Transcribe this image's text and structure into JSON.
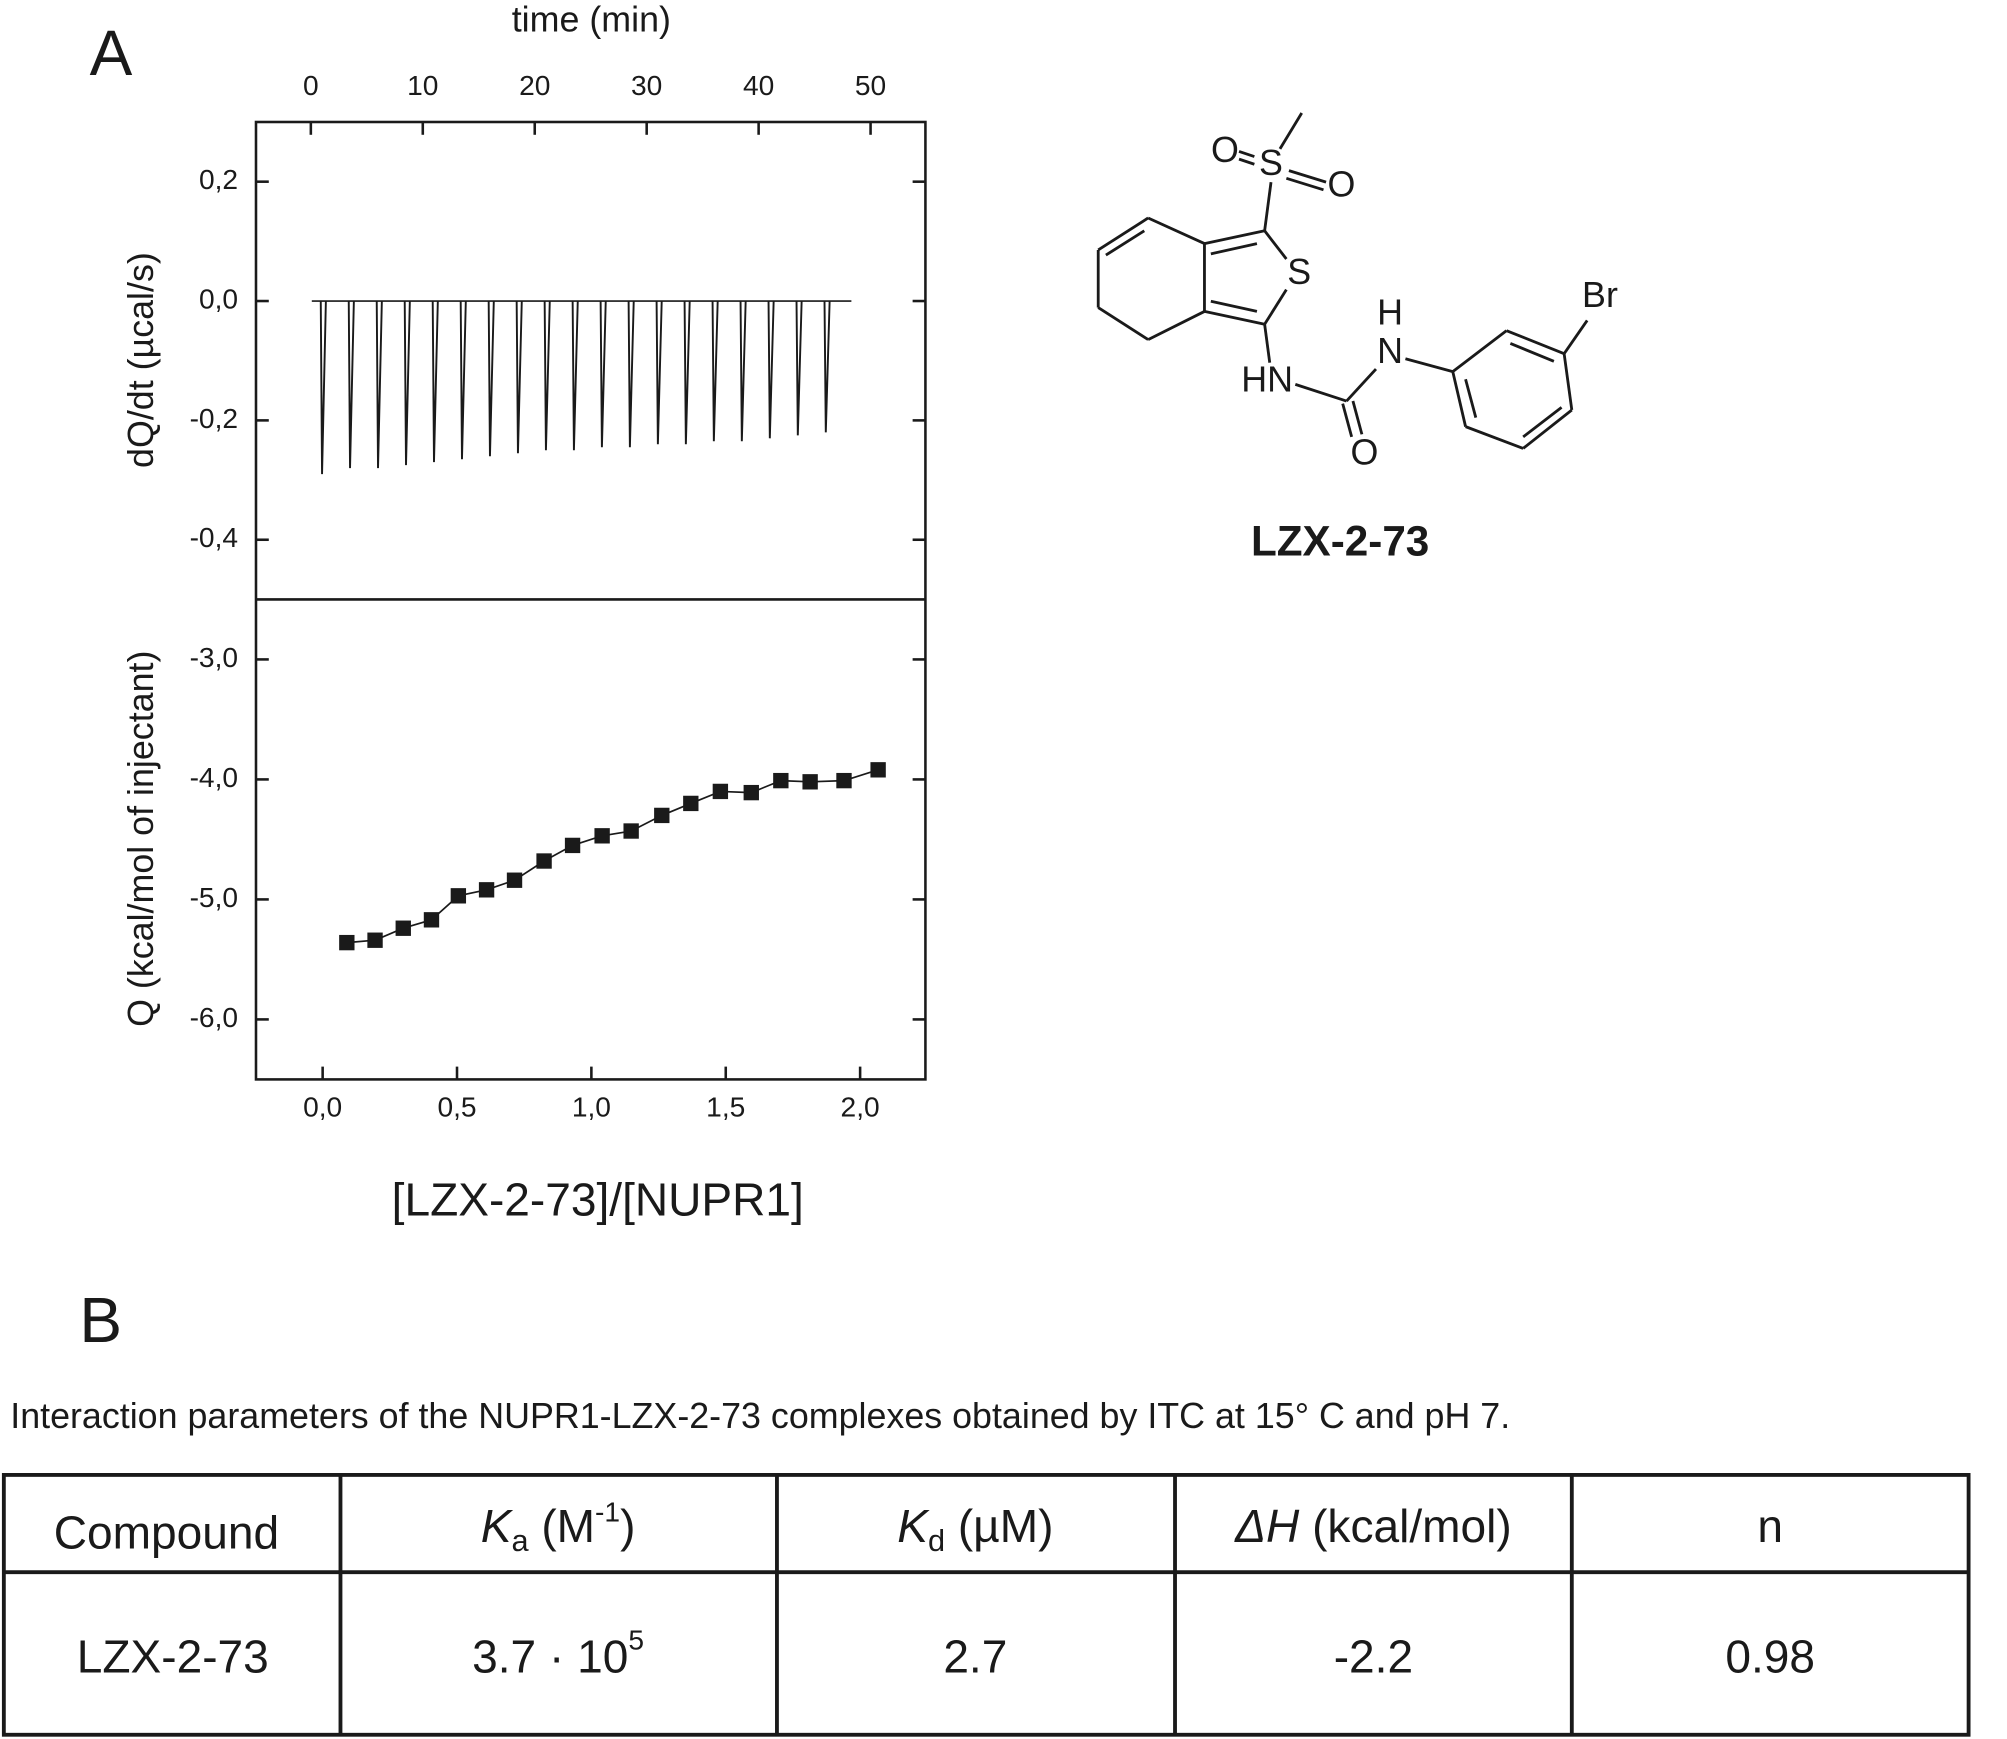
{
  "panel_labels": [
    "A",
    "B"
  ],
  "chart_data": [
    {
      "type": "bar",
      "xlabel": "time (min)",
      "ylabel": "dQ/dt (µcal/s)",
      "color": "#1a1a1a",
      "x": [
        1,
        3.5,
        6,
        8.5,
        11,
        13.5,
        16,
        18.5,
        21,
        23.5,
        26,
        28.5,
        31,
        33.5,
        36,
        38.5,
        41,
        43.5,
        46
      ],
      "values": [
        -0.29,
        -0.28,
        -0.28,
        -0.275,
        -0.27,
        -0.265,
        -0.26,
        -0.255,
        -0.25,
        -0.25,
        -0.245,
        -0.245,
        -0.24,
        -0.24,
        -0.235,
        -0.235,
        -0.23,
        -0.225,
        -0.22
      ],
      "xlim": [
        -4.9,
        54.9
      ],
      "xticks": [
        0,
        10,
        20,
        30,
        40,
        50
      ],
      "ylim": [
        -0.5,
        0.3
      ],
      "yticks": [
        {
          "value": 0.2,
          "label": "0,2"
        },
        {
          "value": 0,
          "label": "0,0"
        },
        {
          "value": -0.2,
          "label": "-0,2"
        },
        {
          "value": -0.4,
          "label": "-0,4"
        }
      ]
    },
    {
      "type": "line",
      "xlabel": "[LZX-2-73]/[NUPR1]",
      "ylabel": "Q (kcal/mol of injectant)",
      "color": "#1a1a1a",
      "x": [
        0.09,
        0.195,
        0.3,
        0.405,
        0.505,
        0.61,
        0.714,
        0.824,
        0.93,
        1.04,
        1.148,
        1.262,
        1.37,
        1.48,
        1.595,
        1.705,
        1.814,
        1.94,
        2.067
      ],
      "values": [
        -5.36,
        -5.34,
        -5.24,
        -5.17,
        -4.97,
        -4.92,
        -4.84,
        -4.68,
        -4.55,
        -4.47,
        -4.43,
        -4.3,
        -4.2,
        -4.1,
        -4.11,
        -4.01,
        -4.02,
        -4.01,
        -3.92
      ],
      "xlim": [
        -0.248,
        2.243
      ],
      "xticks": [
        {
          "value": 0,
          "label": "0,0"
        },
        {
          "value": 0.5,
          "label": "0,5"
        },
        {
          "value": 1,
          "label": "1,0"
        },
        {
          "value": 1.5,
          "label": "1,5"
        },
        {
          "value": 2,
          "label": "2,0"
        }
      ],
      "ylim": [
        -6.5,
        -2.5
      ],
      "yticks": [
        {
          "value": -3,
          "label": "-3,0"
        },
        {
          "value": -4,
          "label": "-4,0"
        },
        {
          "value": -5,
          "label": "-5,0"
        },
        {
          "value": -6,
          "label": "-6,0"
        }
      ]
    }
  ],
  "molecule": {
    "atoms": [
      "O",
      "S",
      "O",
      "S",
      "HN",
      "H",
      "N",
      "O",
      "Br"
    ],
    "name": "LZX-2-73"
  },
  "caption": "Interaction parameters of the NUPR1-LZX-2-73 complexes obtained by ITC at 15°  C and pH 7.",
  "table": {
    "header": [
      "Compound",
      {
        "italic": "K",
        "sub": "a",
        "text": " (M",
        "sup": "-1",
        "end": ")"
      },
      {
        "italic": "K",
        "sub": "d",
        "text": " (µM)"
      },
      {
        "italic": "ΔH",
        "text": " (kcal/mol)"
      },
      "n"
    ],
    "rows": [
      [
        "LZX-2-73",
        {
          "text": "3.7 · 10",
          "sup": "5"
        },
        "2.7",
        "-2.2",
        "0.98"
      ]
    ]
  }
}
